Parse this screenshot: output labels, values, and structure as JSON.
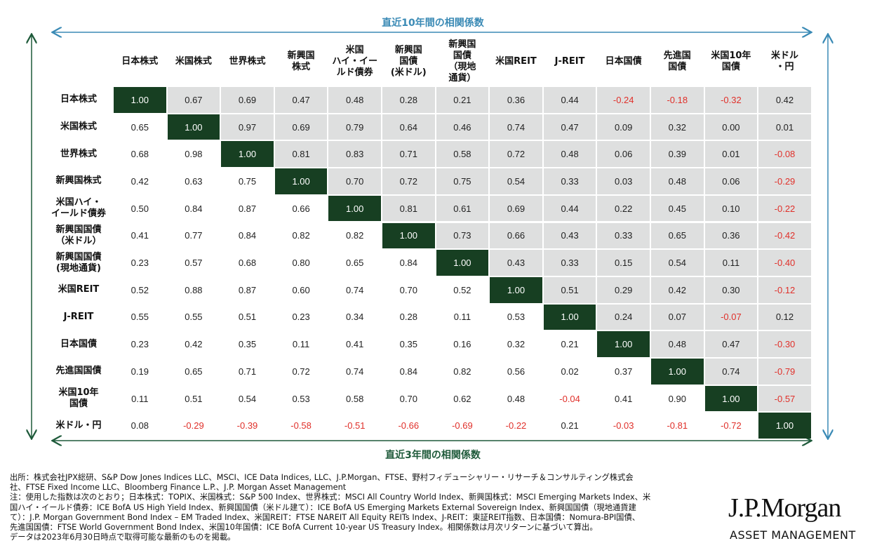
{
  "top_label": "直近10年間の相関係数",
  "bottom_label": "直近3年間の相関係数",
  "column_headers": [
    [
      "日本株式"
    ],
    [
      "米国株式"
    ],
    [
      "世界株式"
    ],
    [
      "新興国",
      "株式"
    ],
    [
      "米国",
      "ハイ・イー",
      "ルド債券"
    ],
    [
      "新興国",
      "国債",
      "(米ドル)"
    ],
    [
      "新興国",
      "国債",
      "（現地",
      "通貨）"
    ],
    [
      "米国REIT"
    ],
    [
      "J-REIT"
    ],
    [
      "日本国債"
    ],
    [
      "先進国",
      "国債"
    ],
    [
      "米国10年",
      "国債"
    ],
    [
      "米ドル",
      "・円"
    ]
  ],
  "row_headers": [
    [
      "日本株式"
    ],
    [
      "米国株式"
    ],
    [
      "世界株式"
    ],
    [
      "新興国株式"
    ],
    [
      "米国ハイ・",
      "イールド債券"
    ],
    [
      "新興国国債",
      "（米ドル）"
    ],
    [
      "新興国国債",
      "(現地通貨)"
    ],
    [
      "米国REIT"
    ],
    [
      "J-REIT"
    ],
    [
      "日本国債"
    ],
    [
      "先進国国債"
    ],
    [
      "米国10年",
      "国債"
    ],
    [
      "米ドル・円"
    ]
  ],
  "rows": [
    [
      "1.00",
      "0.67",
      "0.69",
      "0.47",
      "0.48",
      "0.28",
      "0.21",
      "0.36",
      "0.44",
      "-0.24",
      "-0.18",
      "-0.32",
      "0.42"
    ],
    [
      "0.65",
      "1.00",
      "0.97",
      "0.69",
      "0.79",
      "0.64",
      "0.46",
      "0.74",
      "0.47",
      "0.09",
      "0.32",
      "0.00",
      "0.01"
    ],
    [
      "0.68",
      "0.98",
      "1.00",
      "0.81",
      "0.83",
      "0.71",
      "0.58",
      "0.72",
      "0.48",
      "0.06",
      "0.39",
      "0.01",
      "-0.08"
    ],
    [
      "0.42",
      "0.63",
      "0.75",
      "1.00",
      "0.70",
      "0.72",
      "0.75",
      "0.54",
      "0.33",
      "0.03",
      "0.48",
      "0.06",
      "-0.29"
    ],
    [
      "0.50",
      "0.84",
      "0.87",
      "0.66",
      "1.00",
      "0.81",
      "0.61",
      "0.69",
      "0.44",
      "0.22",
      "0.45",
      "0.10",
      "-0.22"
    ],
    [
      "0.41",
      "0.77",
      "0.84",
      "0.82",
      "0.82",
      "1.00",
      "0.73",
      "0.66",
      "0.43",
      "0.33",
      "0.65",
      "0.36",
      "-0.42"
    ],
    [
      "0.23",
      "0.57",
      "0.68",
      "0.80",
      "0.65",
      "0.84",
      "1.00",
      "0.43",
      "0.33",
      "0.15",
      "0.54",
      "0.11",
      "-0.40"
    ],
    [
      "0.52",
      "0.88",
      "0.87",
      "0.60",
      "0.74",
      "0.70",
      "0.52",
      "1.00",
      "0.51",
      "0.29",
      "0.42",
      "0.30",
      "-0.12"
    ],
    [
      "0.55",
      "0.55",
      "0.51",
      "0.23",
      "0.34",
      "0.28",
      "0.11",
      "0.53",
      "1.00",
      "0.24",
      "0.07",
      "-0.07",
      "0.12"
    ],
    [
      "0.23",
      "0.42",
      "0.35",
      "0.11",
      "0.41",
      "0.35",
      "0.16",
      "0.32",
      "0.21",
      "1.00",
      "0.48",
      "0.47",
      "-0.30"
    ],
    [
      "0.19",
      "0.65",
      "0.71",
      "0.72",
      "0.74",
      "0.84",
      "0.82",
      "0.56",
      "0.02",
      "0.37",
      "1.00",
      "0.74",
      "-0.79"
    ],
    [
      "0.11",
      "0.51",
      "0.54",
      "0.53",
      "0.58",
      "0.70",
      "0.62",
      "0.48",
      "-0.04",
      "0.41",
      "0.90",
      "1.00",
      "-0.57"
    ],
    [
      "0.08",
      "-0.29",
      "-0.39",
      "-0.58",
      "-0.51",
      "-0.66",
      "-0.69",
      "-0.22",
      "0.21",
      "-0.03",
      "-0.81",
      "-0.72",
      "1.00"
    ]
  ],
  "footnotes": [
    "出所：株式会社JPX総研、S&P Dow Jones Indices LLC、MSCI、ICE Data Indices, LLC、J.P.Morgan、FTSE、野村フィデューシャリー・リサーチ＆コンサルティング株式会",
    "社、FTSE Fixed Income LLC、Bloomberg Finance L.P.、J.P. Morgan Asset Management",
    "注：使用した指数は次のとおり；日本株式：TOPIX、米国株式：S&P 500 Index、世界株式：MSCI All Country World Index、新興国株式：MSCI Emerging Markets Index、米",
    "国ハイ・イールド債券：ICE BofA US High Yield Index、新興国国債（米ドル建て）：ICE BofA US Emerging Markets External Sovereign Index、新興国国債（現地通貨建",
    "て）：J.P. Morgan Government Bond Index – EM Traded Index、米国REIT：FTSE NAREIT All Equity REITs Index、J-REIT：東証REIT指数、日本国債：Nomura-BPI国債、",
    "先進国国債：FTSE World Government Bond Index、米国10年国債：ICE BofA Current 10-year US Treasury Index。相関係数は月次リターンに基づいて算出。",
    "データは2023年6月30日時点で取得可能な最新のものを掲載。"
  ],
  "logo": {
    "name": "J.P.Morgan",
    "sub": "ASSET MANAGEMENT"
  }
}
